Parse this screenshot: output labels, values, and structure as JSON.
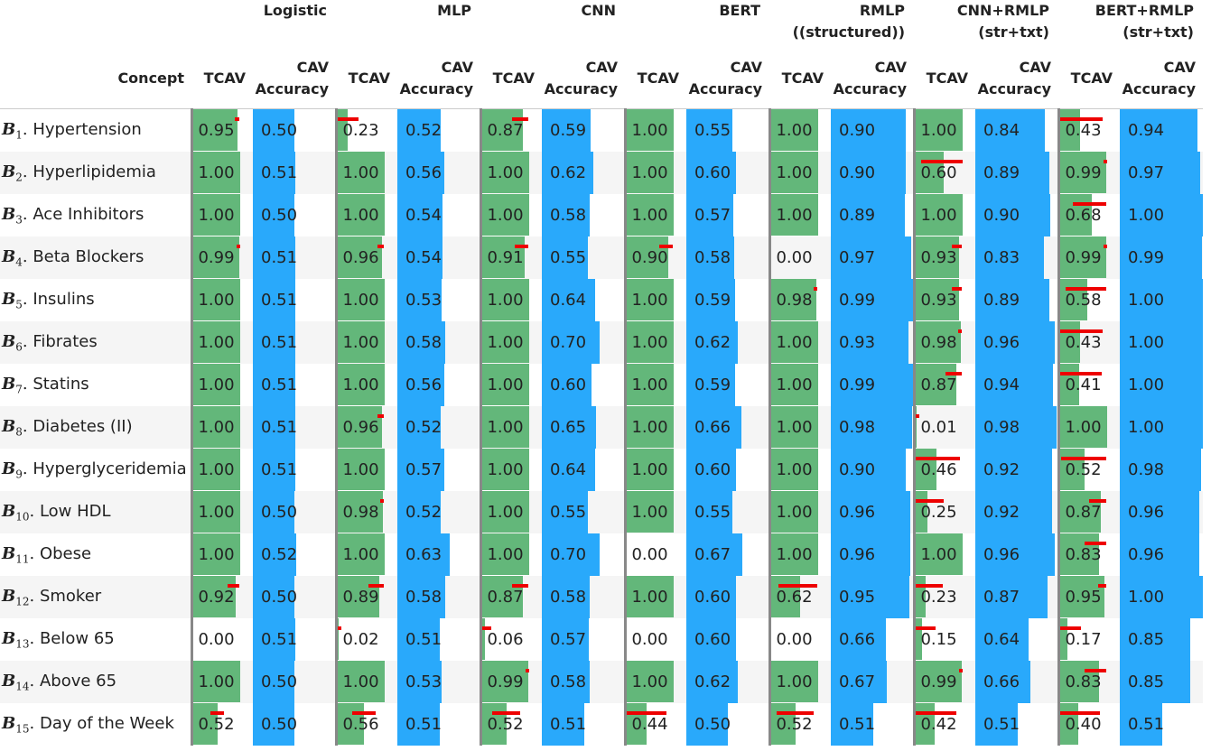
{
  "header": {
    "concept_label": "Concept",
    "tcav_label": "TCAV",
    "cav_label_line1": "CAV",
    "cav_label_line2": "Accuracy",
    "models": [
      {
        "line1": "Logistic",
        "line2": ""
      },
      {
        "line1": "MLP",
        "line2": ""
      },
      {
        "line1": "CNN",
        "line2": ""
      },
      {
        "line1": "BERT",
        "line2": ""
      },
      {
        "line1": "RMLP",
        "line2": "((structured))"
      },
      {
        "line1": "CNN+RMLP",
        "line2": "(str+txt)"
      },
      {
        "line1": "BERT+RMLP",
        "line2": "(str+txt)"
      }
    ]
  },
  "colors": {
    "tcav_bar": "#63b77a",
    "cav_bar": "#29a9fb",
    "error_bar": "#ee0000"
  },
  "chart_data": {
    "type": "table",
    "concepts": [
      {
        "letter": "B",
        "index": "1",
        "name": "Hypertension"
      },
      {
        "letter": "B",
        "index": "2",
        "name": "Hyperlipidemia"
      },
      {
        "letter": "B",
        "index": "3",
        "name": "Ace Inhibitors"
      },
      {
        "letter": "B",
        "index": "4",
        "name": "Beta Blockers"
      },
      {
        "letter": "B",
        "index": "5",
        "name": "Insulins"
      },
      {
        "letter": "B",
        "index": "6",
        "name": "Fibrates"
      },
      {
        "letter": "B",
        "index": "7",
        "name": "Statins"
      },
      {
        "letter": "B",
        "index": "8",
        "name": "Diabetes (II)"
      },
      {
        "letter": "B",
        "index": "9",
        "name": "Hyperglyceridemia"
      },
      {
        "letter": "B",
        "index": "10",
        "name": "Low HDL"
      },
      {
        "letter": "B",
        "index": "11",
        "name": "Obese"
      },
      {
        "letter": "B",
        "index": "12",
        "name": "Smoker"
      },
      {
        "letter": "B",
        "index": "13",
        "name": "Below 65"
      },
      {
        "letter": "B",
        "index": "14",
        "name": "Above 65"
      },
      {
        "letter": "B",
        "index": "15",
        "name": "Day of the Week"
      }
    ],
    "tcav": [
      [
        "0.95",
        "0.23",
        "0.87",
        "1.00",
        "1.00",
        "1.00",
        "0.43"
      ],
      [
        "1.00",
        "1.00",
        "1.00",
        "1.00",
        "1.00",
        "0.60",
        "0.99"
      ],
      [
        "1.00",
        "1.00",
        "1.00",
        "1.00",
        "1.00",
        "1.00",
        "0.68"
      ],
      [
        "0.99",
        "0.96",
        "0.91",
        "0.90",
        "0.00",
        "0.93",
        "0.99"
      ],
      [
        "1.00",
        "1.00",
        "1.00",
        "1.00",
        "0.98",
        "0.93",
        "0.58"
      ],
      [
        "1.00",
        "1.00",
        "1.00",
        "1.00",
        "1.00",
        "0.98",
        "0.43"
      ],
      [
        "1.00",
        "1.00",
        "1.00",
        "1.00",
        "1.00",
        "0.87",
        "0.41"
      ],
      [
        "1.00",
        "0.96",
        "1.00",
        "1.00",
        "1.00",
        "0.01",
        "1.00"
      ],
      [
        "1.00",
        "1.00",
        "1.00",
        "1.00",
        "1.00",
        "0.46",
        "0.52"
      ],
      [
        "1.00",
        "0.98",
        "1.00",
        "1.00",
        "1.00",
        "0.25",
        "0.87"
      ],
      [
        "1.00",
        "1.00",
        "1.00",
        "0.00",
        "1.00",
        "1.00",
        "0.83"
      ],
      [
        "0.92",
        "0.89",
        "0.87",
        "1.00",
        "0.62",
        "0.23",
        "0.95"
      ],
      [
        "0.00",
        "0.02",
        "0.06",
        "0.00",
        "0.00",
        "0.15",
        "0.17"
      ],
      [
        "1.00",
        "1.00",
        "0.99",
        "1.00",
        "1.00",
        "0.99",
        "0.83"
      ],
      [
        "0.52",
        "0.56",
        "0.52",
        "0.44",
        "0.52",
        "0.42",
        "0.40"
      ]
    ],
    "tcav_error": [
      [
        0.1,
        0.45,
        0.45,
        0,
        0,
        0,
        0.95
      ],
      [
        0,
        0,
        0,
        0,
        0,
        0.95,
        0.1
      ],
      [
        0,
        0,
        0,
        0,
        0,
        0,
        0.8
      ],
      [
        0.1,
        0.2,
        0.4,
        0.4,
        0,
        0.3,
        0.1
      ],
      [
        0,
        0,
        0,
        0,
        0.15,
        0.3,
        0.9
      ],
      [
        0,
        0,
        0,
        0,
        0,
        0.15,
        0.95
      ],
      [
        0,
        0,
        0,
        0,
        0,
        0.45,
        0.95
      ],
      [
        0,
        0.2,
        0,
        0,
        0,
        0.1,
        0
      ],
      [
        0,
        0,
        0,
        0,
        0,
        1.0,
        1.0
      ],
      [
        0,
        0.15,
        0,
        0,
        0,
        0.7,
        0.5
      ],
      [
        0,
        0,
        0,
        0,
        0,
        0,
        0.6
      ],
      [
        0.35,
        0.45,
        0.45,
        0,
        0.9,
        0.7,
        0.25
      ],
      [
        0,
        0.12,
        0.3,
        0,
        0,
        0.55,
        0.55
      ],
      [
        0,
        0,
        0.1,
        0,
        0,
        0.1,
        0.6
      ],
      [
        0.3,
        0.5,
        0.6,
        0.85,
        0.8,
        0.9,
        0.9
      ]
    ],
    "cav_accuracy": [
      [
        "0.50",
        "0.52",
        "0.59",
        "0.55",
        "0.90",
        "0.84",
        "0.94"
      ],
      [
        "0.51",
        "0.56",
        "0.62",
        "0.60",
        "0.90",
        "0.89",
        "0.97"
      ],
      [
        "0.50",
        "0.54",
        "0.58",
        "0.57",
        "0.89",
        "0.90",
        "1.00"
      ],
      [
        "0.51",
        "0.54",
        "0.55",
        "0.58",
        "0.97",
        "0.83",
        "0.99"
      ],
      [
        "0.51",
        "0.53",
        "0.64",
        "0.59",
        "0.99",
        "0.89",
        "1.00"
      ],
      [
        "0.51",
        "0.58",
        "0.70",
        "0.62",
        "0.93",
        "0.96",
        "1.00"
      ],
      [
        "0.51",
        "0.56",
        "0.60",
        "0.59",
        "0.99",
        "0.94",
        "1.00"
      ],
      [
        "0.51",
        "0.52",
        "0.65",
        "0.66",
        "0.98",
        "0.98",
        "1.00"
      ],
      [
        "0.51",
        "0.57",
        "0.64",
        "0.60",
        "0.90",
        "0.92",
        "0.98"
      ],
      [
        "0.50",
        "0.52",
        "0.55",
        "0.55",
        "0.96",
        "0.92",
        "0.96"
      ],
      [
        "0.52",
        "0.63",
        "0.70",
        "0.67",
        "0.96",
        "0.96",
        "0.96"
      ],
      [
        "0.50",
        "0.58",
        "0.58",
        "0.60",
        "0.95",
        "0.87",
        "1.00"
      ],
      [
        "0.51",
        "0.51",
        "0.57",
        "0.60",
        "0.66",
        "0.64",
        "0.85"
      ],
      [
        "0.50",
        "0.53",
        "0.58",
        "0.62",
        "0.67",
        "0.66",
        "0.85"
      ],
      [
        "0.50",
        "0.51",
        "0.51",
        "0.50",
        "0.51",
        "0.51",
        "0.51"
      ]
    ]
  }
}
